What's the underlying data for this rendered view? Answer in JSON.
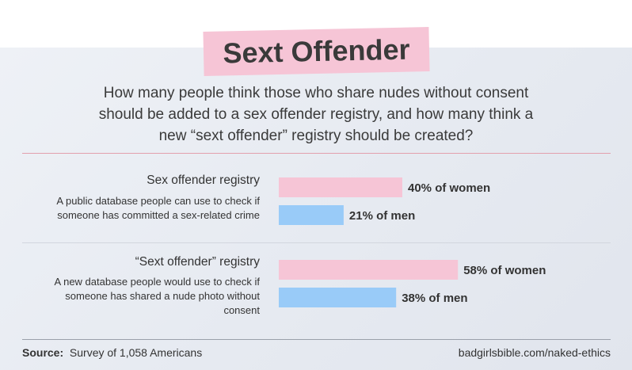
{
  "title": "Sext Offender",
  "question": "How many people think those who share nudes without consent should be added to a sex offender registry, and how many think a new “sext offender” registry should be created?",
  "groups": [
    {
      "label": "Sex offender registry",
      "description": "A public database people can use to check if someone has committed a sex-related crime"
    },
    {
      "label": "“Sext offender” registry",
      "description": "A new database people would use to check if someone has shared a nude photo without consent"
    }
  ],
  "footer": {
    "source_label": "Source:",
    "source_text": "Survey of 1,058 Americans",
    "url": "badgirlsbible.com/naked-ethics"
  },
  "colors": {
    "women": "#f6c5d6",
    "men": "#99cbf8",
    "title_highlight": "#f6c5d6"
  },
  "chart_data": {
    "type": "bar",
    "orientation": "horizontal",
    "categories": [
      "Sex offender registry",
      "“Sext offender” registry"
    ],
    "series": [
      {
        "values": [
          40,
          58
        ],
        "labels": [
          "40% of women",
          "58% of women"
        ]
      },
      {
        "values": [
          21,
          38
        ],
        "labels": [
          "21% of men",
          "38% of men"
        ]
      }
    ],
    "unit": "%",
    "xlim": [
      0,
      100
    ],
    "grid": false,
    "legend": "none"
  }
}
